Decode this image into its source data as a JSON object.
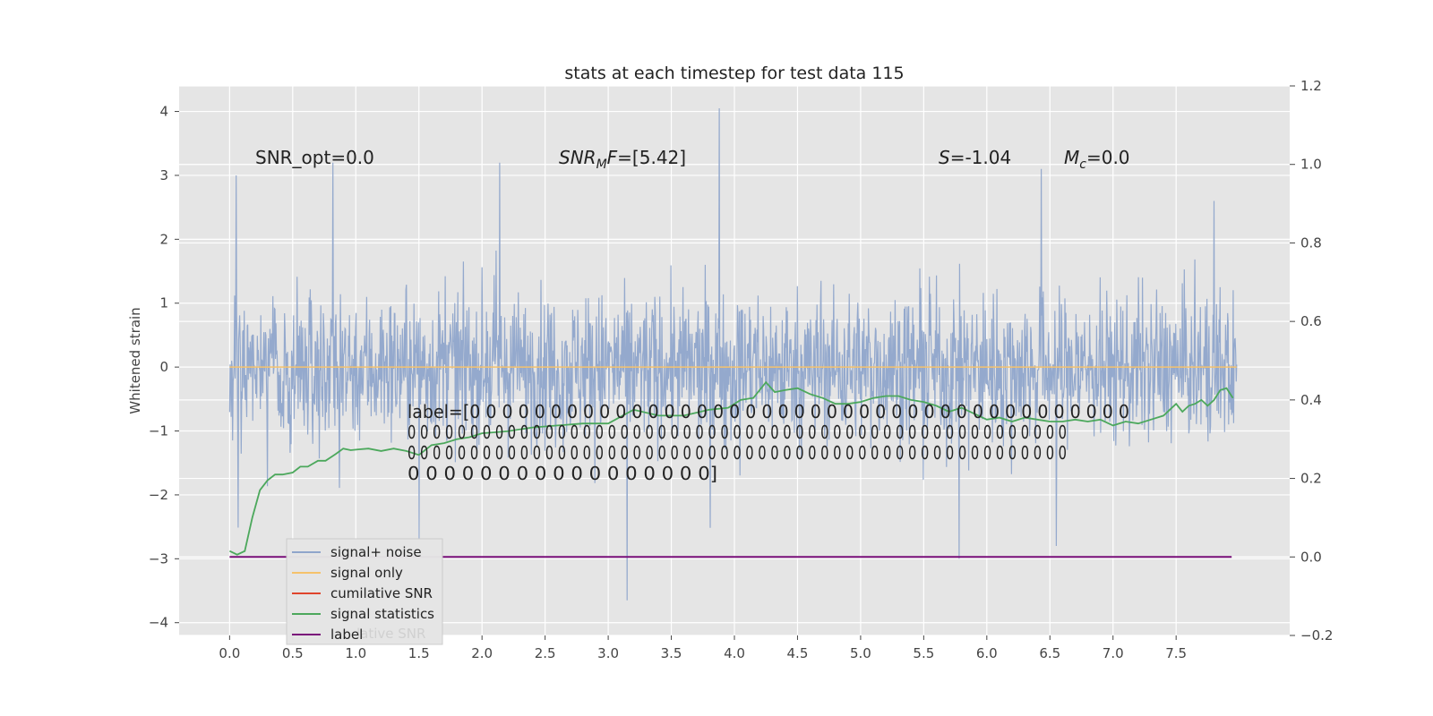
{
  "chart_data": {
    "type": "line",
    "title": "stats at each timestep for test data 115",
    "ylabel": "Whitened strain",
    "xlabel": "",
    "xlim": [
      -0.4,
      8.4
    ],
    "ylim": [
      -4.2,
      4.4
    ],
    "ylim_right": [
      -0.2,
      1.2
    ],
    "x_ticks": [
      0.0,
      0.5,
      1.0,
      1.5,
      2.0,
      2.5,
      3.0,
      3.5,
      4.0,
      4.5,
      5.0,
      5.5,
      6.0,
      6.5,
      7.0,
      7.5
    ],
    "x_tick_labels": [
      "0.0",
      "0.5",
      "1.0",
      "1.5",
      "2.0",
      "2.5",
      "3.0",
      "3.5",
      "4.0",
      "4.5",
      "5.0",
      "5.5",
      "6.0",
      "6.5",
      "7.0",
      "7.5"
    ],
    "y_ticks": [
      -4,
      -3,
      -2,
      -1,
      0,
      1,
      2,
      3,
      4
    ],
    "y_tick_labels": [
      "−4",
      "−3",
      "−2",
      "−1",
      "0",
      "1",
      "2",
      "3",
      "4"
    ],
    "y_right_ticks": [
      -0.2,
      0.0,
      0.2,
      0.4,
      0.6,
      0.8,
      1.0,
      1.2
    ],
    "y_right_tick_labels": [
      "−0.2",
      "0.0",
      "0.2",
      "0.4",
      "0.6",
      "0.8",
      "1.0",
      "1.2"
    ],
    "grid": true,
    "colors": {
      "noise": "#8fa5cb",
      "signal": "#f5c26b",
      "cumulative": "#e0442c",
      "stats": "#4ca85c",
      "label": "#7a0f7a",
      "background": "#e5e5e5"
    },
    "annotations": [
      {
        "id": "snr-opt",
        "text": "SNR_opt=0.0"
      },
      {
        "id": "snr-mf",
        "text": "SNR_MF=[5.42]"
      },
      {
        "id": "s",
        "text": "S=-1.04"
      },
      {
        "id": "mc",
        "text": "M_c=0.0"
      }
    ],
    "label_text": [
      "label=[0 0 0 0 0 0 0 0 0 0 0 0 0 0 0 0 0 0 0 0 0 0 0 0 0 0 0 0 0 0 0 0 0 0 0 0 0 0 0 0 0",
      " 0 0 0 0 0 0 0 0 0 0 0 0 0 0 0 0 0 0 0 0 0 0 0 0 0 0 0 0 0 0 0 0 0 0 0 0 0 0 0 0 0 0 0 0 0 0 0 0 0 0 0 0 0",
      " 0 0 0 0 0 0 0 0 0 0 0 0 0 0 0 0 0 0 0 0 0 0 0 0 0 0 0 0 0 0 0 0 0 0 0 0 0 0 0 0 0 0 0 0 0 0 0 0 0 0 0 0 0",
      " 0 0 0 0 0 0 0 0 0 0 0 0 0 0 0 0 0]"
    ],
    "legend": {
      "placement": "lower-left",
      "entries": [
        "signal+ noise",
        "signal only",
        "cumilative SNR",
        "signal statistics",
        "label"
      ],
      "hidden_text": "lative SNR"
    },
    "series": [
      {
        "name": "signal only",
        "axis": "left",
        "x": [
          0.0,
          7.98
        ],
        "y": [
          0.0,
          0.0
        ]
      },
      {
        "name": "label",
        "axis": "right",
        "x": [
          0.0,
          7.94
        ],
        "y": [
          0.0,
          0.0
        ]
      },
      {
        "name": "signal statistics",
        "axis": "right",
        "x": [
          0.0,
          0.06,
          0.12,
          0.18,
          0.24,
          0.3,
          0.36,
          0.42,
          0.5,
          0.56,
          0.62,
          0.7,
          0.76,
          0.84,
          0.9,
          0.96,
          1.02,
          1.1,
          1.2,
          1.3,
          1.4,
          1.5,
          1.6,
          1.7,
          1.8,
          1.9,
          2.0,
          2.2,
          2.4,
          2.6,
          2.8,
          3.0,
          3.2,
          3.4,
          3.6,
          3.8,
          3.95,
          4.05,
          4.15,
          4.25,
          4.32,
          4.4,
          4.5,
          4.6,
          4.7,
          4.8,
          4.9,
          5.0,
          5.1,
          5.2,
          5.3,
          5.4,
          5.5,
          5.6,
          5.7,
          5.8,
          5.9,
          6.0,
          6.1,
          6.2,
          6.3,
          6.4,
          6.5,
          6.6,
          6.7,
          6.8,
          6.9,
          7.0,
          7.1,
          7.2,
          7.3,
          7.4,
          7.45,
          7.5,
          7.55,
          7.6,
          7.65,
          7.7,
          7.75,
          7.8,
          7.85,
          7.9,
          7.95
        ],
        "y": [
          0.015,
          0.006,
          0.015,
          0.1,
          0.17,
          0.195,
          0.21,
          0.21,
          0.215,
          0.23,
          0.23,
          0.245,
          0.245,
          0.262,
          0.276,
          0.272,
          0.274,
          0.276,
          0.27,
          0.276,
          0.27,
          0.26,
          0.285,
          0.29,
          0.3,
          0.305,
          0.315,
          0.32,
          0.33,
          0.335,
          0.34,
          0.34,
          0.375,
          0.36,
          0.36,
          0.375,
          0.38,
          0.4,
          0.405,
          0.445,
          0.42,
          0.425,
          0.43,
          0.415,
          0.405,
          0.39,
          0.39,
          0.395,
          0.405,
          0.41,
          0.41,
          0.4,
          0.395,
          0.385,
          0.37,
          0.38,
          0.365,
          0.35,
          0.355,
          0.345,
          0.355,
          0.35,
          0.345,
          0.345,
          0.35,
          0.345,
          0.35,
          0.335,
          0.345,
          0.34,
          0.35,
          0.36,
          0.375,
          0.39,
          0.37,
          0.385,
          0.39,
          0.4,
          0.385,
          0.4,
          0.425,
          0.43,
          0.405
        ]
      },
      {
        "name": "signal+ noise",
        "axis": "left",
        "x_range": [
          0.0,
          7.98
        ],
        "typical_range": [
          -1.5,
          1.5
        ],
        "peaks": [
          {
            "x": 3.88,
            "y": 4.05
          },
          {
            "x": 3.15,
            "y": -3.65
          },
          {
            "x": 5.78,
            "y": -3.0
          },
          {
            "x": 0.82,
            "y": 3.2
          },
          {
            "x": 2.14,
            "y": 3.2
          },
          {
            "x": 6.43,
            "y": 3.1
          },
          {
            "x": 0.05,
            "y": 3.0
          },
          {
            "x": 7.8,
            "y": 2.6
          },
          {
            "x": 6.55,
            "y": -2.8
          },
          {
            "x": 1.5,
            "y": -2.7
          }
        ]
      }
    ]
  }
}
